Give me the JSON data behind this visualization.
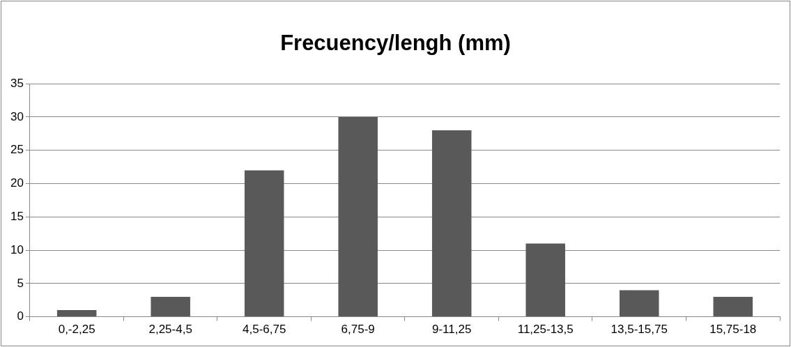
{
  "chart_data": {
    "type": "bar",
    "title": "Frecuency/lengh (mm)",
    "categories": [
      "0,-2,25",
      "2,25-4,5",
      "4,5-6,75",
      "6,75-9",
      "9-11,25",
      "11,25-13,5",
      "13,5-15,75",
      "15,75-18"
    ],
    "values": [
      1,
      3,
      22,
      30,
      28,
      11,
      4,
      3
    ],
    "color": "#595959",
    "ylim": [
      0,
      35
    ],
    "yticks": [
      0,
      5,
      10,
      15,
      20,
      25,
      30,
      35
    ],
    "grid": "y",
    "legend": false
  }
}
